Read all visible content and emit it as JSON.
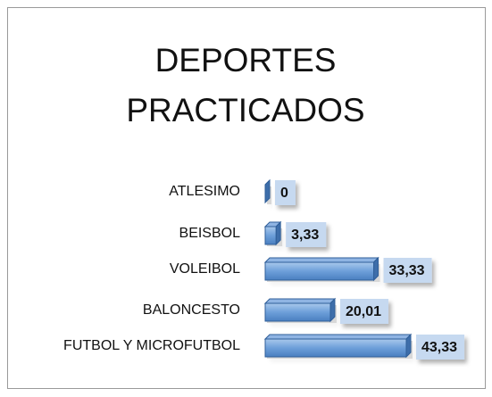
{
  "chart_data": {
    "type": "bar",
    "orientation": "horizontal",
    "title": "DEPORTES PRACTICADOS",
    "categories": [
      "ATLESIMO",
      "BEISBOL",
      "VOLEIBOL",
      "BALONCESTO",
      "FUTBOL Y MICROFUTBOL"
    ],
    "values": [
      0,
      3.33,
      33.33,
      20.01,
      43.33
    ],
    "value_labels": [
      "0",
      "3,33",
      "33,33",
      "20,01",
      "43,33"
    ],
    "color": "#4f81bd"
  }
}
